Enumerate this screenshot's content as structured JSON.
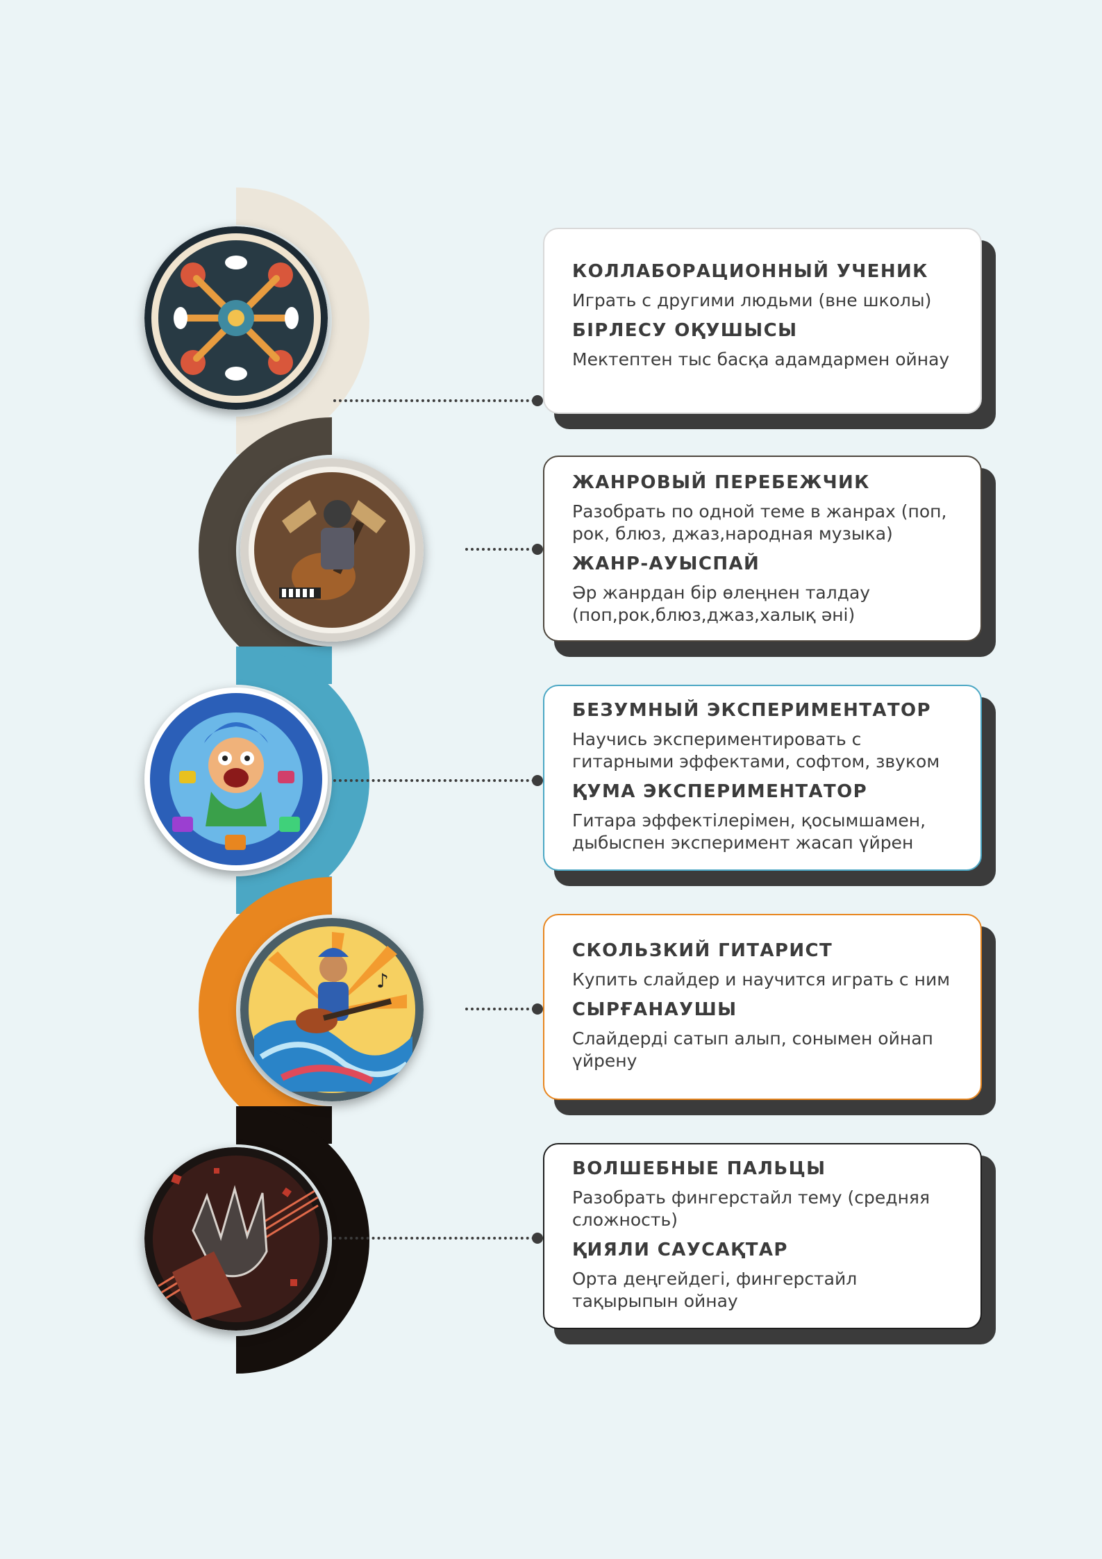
{
  "steps": [
    {
      "title_ru": "КОЛЛАБОРАЦИОННЫЙ УЧЕНИК",
      "desc_ru": "Играть с другими людьми (вне школы)",
      "title_kz": "БІРЛЕСУ ОҚУШЫСЫ",
      "desc_kz": "Мектептен тыс басқа адамдармен ойнау",
      "color": "#ece6da",
      "border": "#d9d9d9"
    },
    {
      "title_ru": "ЖАНРОВЫЙ ПЕРЕБЕЖЧИК",
      "desc_ru": "Разобрать по одной теме в жанрах (поп, рок, блюз, джаз,народная музыка)",
      "title_kz": "ЖАНР-АУЫСПАЙ",
      "desc_kz": "Әр жанрдан бір өлеңнен талдау (поп,рок,блюз,джаз,халық әні)",
      "color": "#4d463d",
      "border": "#4d463d"
    },
    {
      "title_ru": "БЕЗУМНЫЙ ЭКСПЕРИМЕНТАТОР",
      "desc_ru": "Научись экспериментировать с гитарными эффектами, софтом, звуком",
      "title_kz": "ҚУМА ЭКСПЕРИМЕНТАТОР",
      "desc_kz": "Гитара эффектілерімен, қосымшамен, дыбыспен эксперимент жасап үйрен",
      "color": "#4ba7c4",
      "border": "#4ba7c4"
    },
    {
      "title_ru": "СКОЛЬЗКИЙ ГИТАРИСТ",
      "desc_ru": "Купить слайдер и научится играть с ним",
      "title_kz": "СЫРҒАНАУШЫ",
      "desc_kz": "Слайдерді сатып алып, сонымен ойнап үйрену",
      "color": "#e8861f",
      "border": "#e8861f"
    },
    {
      "title_ru": "ВОЛШЕБНЫЕ ПАЛЬЦЫ",
      "desc_ru": "Разобрать фингерстайл тему (средняя сложность)",
      "title_kz": "ҚИЯЛИ САУСАҚТАР",
      "desc_kz": "Орта деңгейдегі, фингерстайл тақырыпын ойнау",
      "color": "#150f0c",
      "border": "#1e1e1e"
    }
  ]
}
